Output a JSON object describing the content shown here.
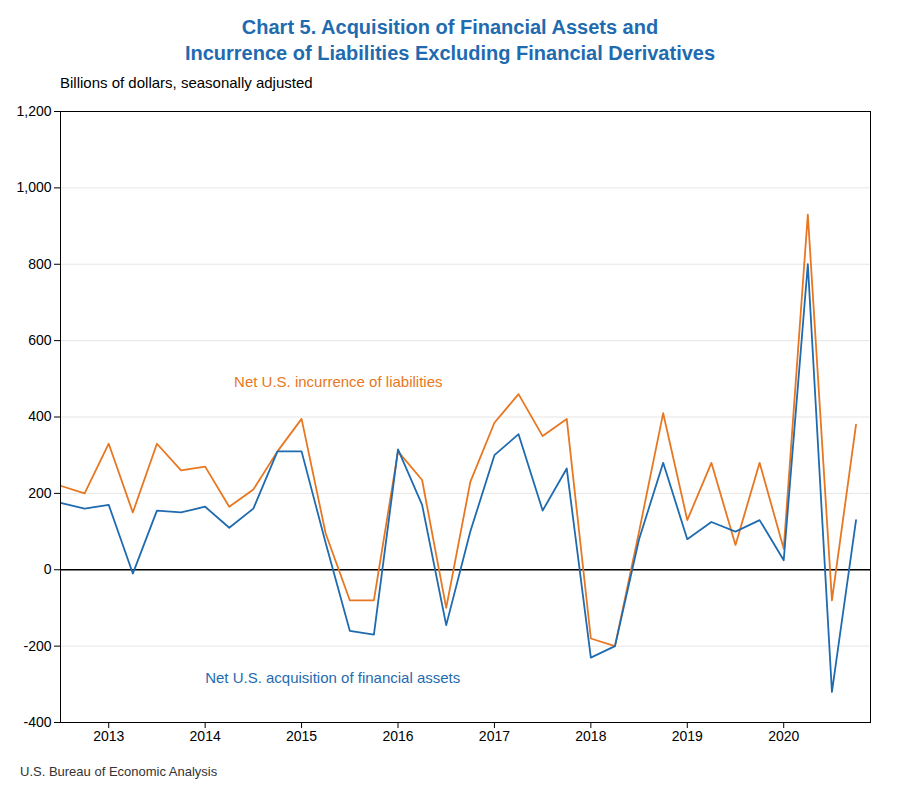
{
  "chart_data": {
    "type": "line",
    "title": "Chart 5. Acquisition of Financial Assets and\nIncurrence of Liabilities Excluding Financial Derivatives",
    "title_color": "#1F6BB0",
    "subtitle": "Billions of dollars, seasonally adjusted",
    "subtitle_color": "#000000",
    "footnote": "U.S. Bureau of Economic Analysis",
    "x": [
      2012.5,
      2012.75,
      2013.0,
      2013.25,
      2013.5,
      2013.75,
      2014.0,
      2014.25,
      2014.5,
      2014.75,
      2015.0,
      2015.25,
      2015.5,
      2015.75,
      2016.0,
      2016.25,
      2016.5,
      2016.75,
      2017.0,
      2017.25,
      2017.5,
      2017.75,
      2018.0,
      2018.25,
      2018.5,
      2018.75,
      2019.0,
      2019.25,
      2019.5,
      2019.75,
      2020.0,
      2020.25,
      2020.5,
      2020.75
    ],
    "series": [
      {
        "name": "Net U.S. incurrence of liabilities",
        "color": "#E87722",
        "values": [
          220,
          200,
          330,
          150,
          330,
          260,
          270,
          165,
          210,
          310,
          395,
          95,
          -80,
          -80,
          310,
          235,
          -100,
          230,
          385,
          460,
          350,
          395,
          -180,
          -200,
          100,
          410,
          130,
          280,
          65,
          280,
          55,
          930,
          -80,
          380
        ]
      },
      {
        "name": "Net U.S. acquisition of financial assets",
        "color": "#1F6BB0",
        "values": [
          175,
          160,
          170,
          -10,
          155,
          150,
          165,
          110,
          160,
          310,
          310,
          70,
          -160,
          -170,
          315,
          170,
          -145,
          100,
          300,
          355,
          155,
          265,
          -230,
          -200,
          80,
          280,
          80,
          125,
          100,
          130,
          25,
          800,
          -320,
          130
        ]
      }
    ],
    "annotations": [
      {
        "text": "Net U.S. incurrence of liabilities",
        "x": 2014.3,
        "y": 490,
        "color": "#E87722"
      },
      {
        "text": "Net U.S. acquisition of financial assets",
        "x": 2014.0,
        "y": -285,
        "color": "#1F6BB0"
      }
    ],
    "xlim": [
      2012.5,
      2020.9
    ],
    "xticks": [
      2013,
      2014,
      2015,
      2016,
      2017,
      2018,
      2019,
      2020
    ],
    "ylim": [
      -400,
      1200
    ],
    "yticks": [
      -400,
      -200,
      0,
      200,
      400,
      600,
      800,
      {
        "value": 1000,
        "label": "1,000"
      },
      {
        "value": 1200,
        "label": "1,200"
      }
    ],
    "grid": true
  }
}
